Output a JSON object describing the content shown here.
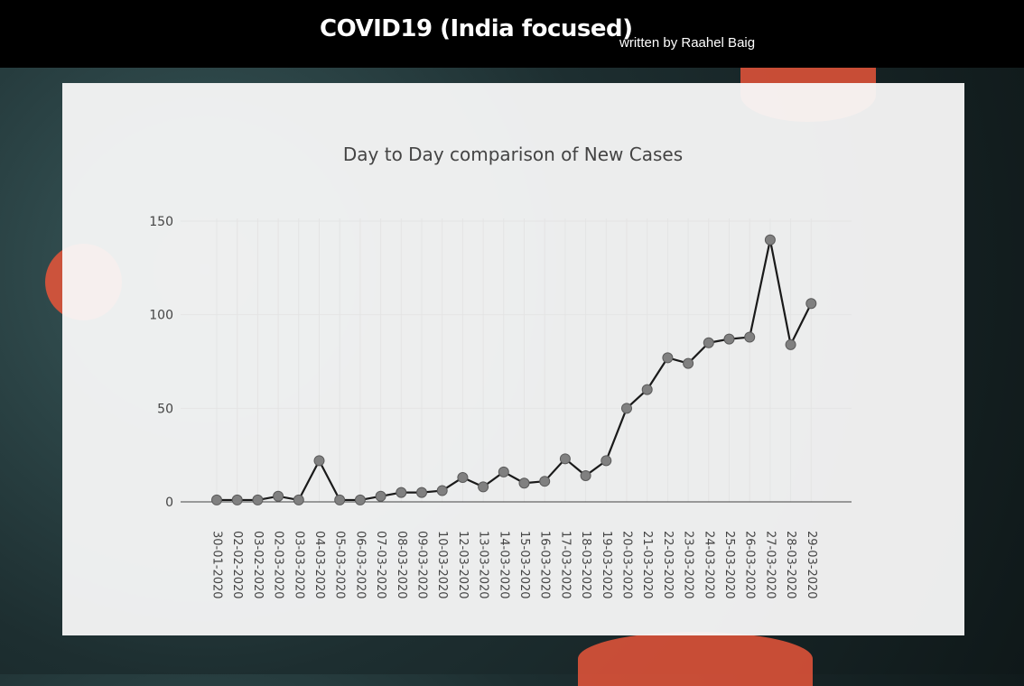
{
  "header": {
    "title": "COVID19 (India focused)",
    "byline": "written by Raahel Baig"
  },
  "chart_data": {
    "type": "line",
    "title": "Day to Day comparison of New Cases",
    "xlabel": "",
    "ylabel": "",
    "ylim": [
      0,
      150
    ],
    "yticks": [
      0,
      50,
      100,
      150
    ],
    "grid": true,
    "legend": "none",
    "line_color": "#1a1a1a",
    "marker_color": "#808080",
    "categories": [
      "30-01-2020",
      "02-02-2020",
      "03-02-2020",
      "02-03-2020",
      "03-03-2020",
      "04-03-2020",
      "05-03-2020",
      "06-03-2020",
      "07-03-2020",
      "08-03-2020",
      "09-03-2020",
      "10-03-2020",
      "12-03-2020",
      "13-03-2020",
      "14-03-2020",
      "15-03-2020",
      "16-03-2020",
      "17-03-2020",
      "18-03-2020",
      "19-03-2020",
      "20-03-2020",
      "21-03-2020",
      "22-03-2020",
      "23-03-2020",
      "24-03-2020",
      "25-03-2020",
      "26-03-2020",
      "27-03-2020",
      "28-03-2020",
      "29-03-2020"
    ],
    "values": [
      1,
      1,
      1,
      3,
      1,
      22,
      1,
      1,
      3,
      5,
      5,
      6,
      13,
      8,
      16,
      10,
      11,
      23,
      14,
      22,
      50,
      60,
      77,
      74,
      85,
      87,
      88,
      140,
      84,
      106
    ]
  }
}
